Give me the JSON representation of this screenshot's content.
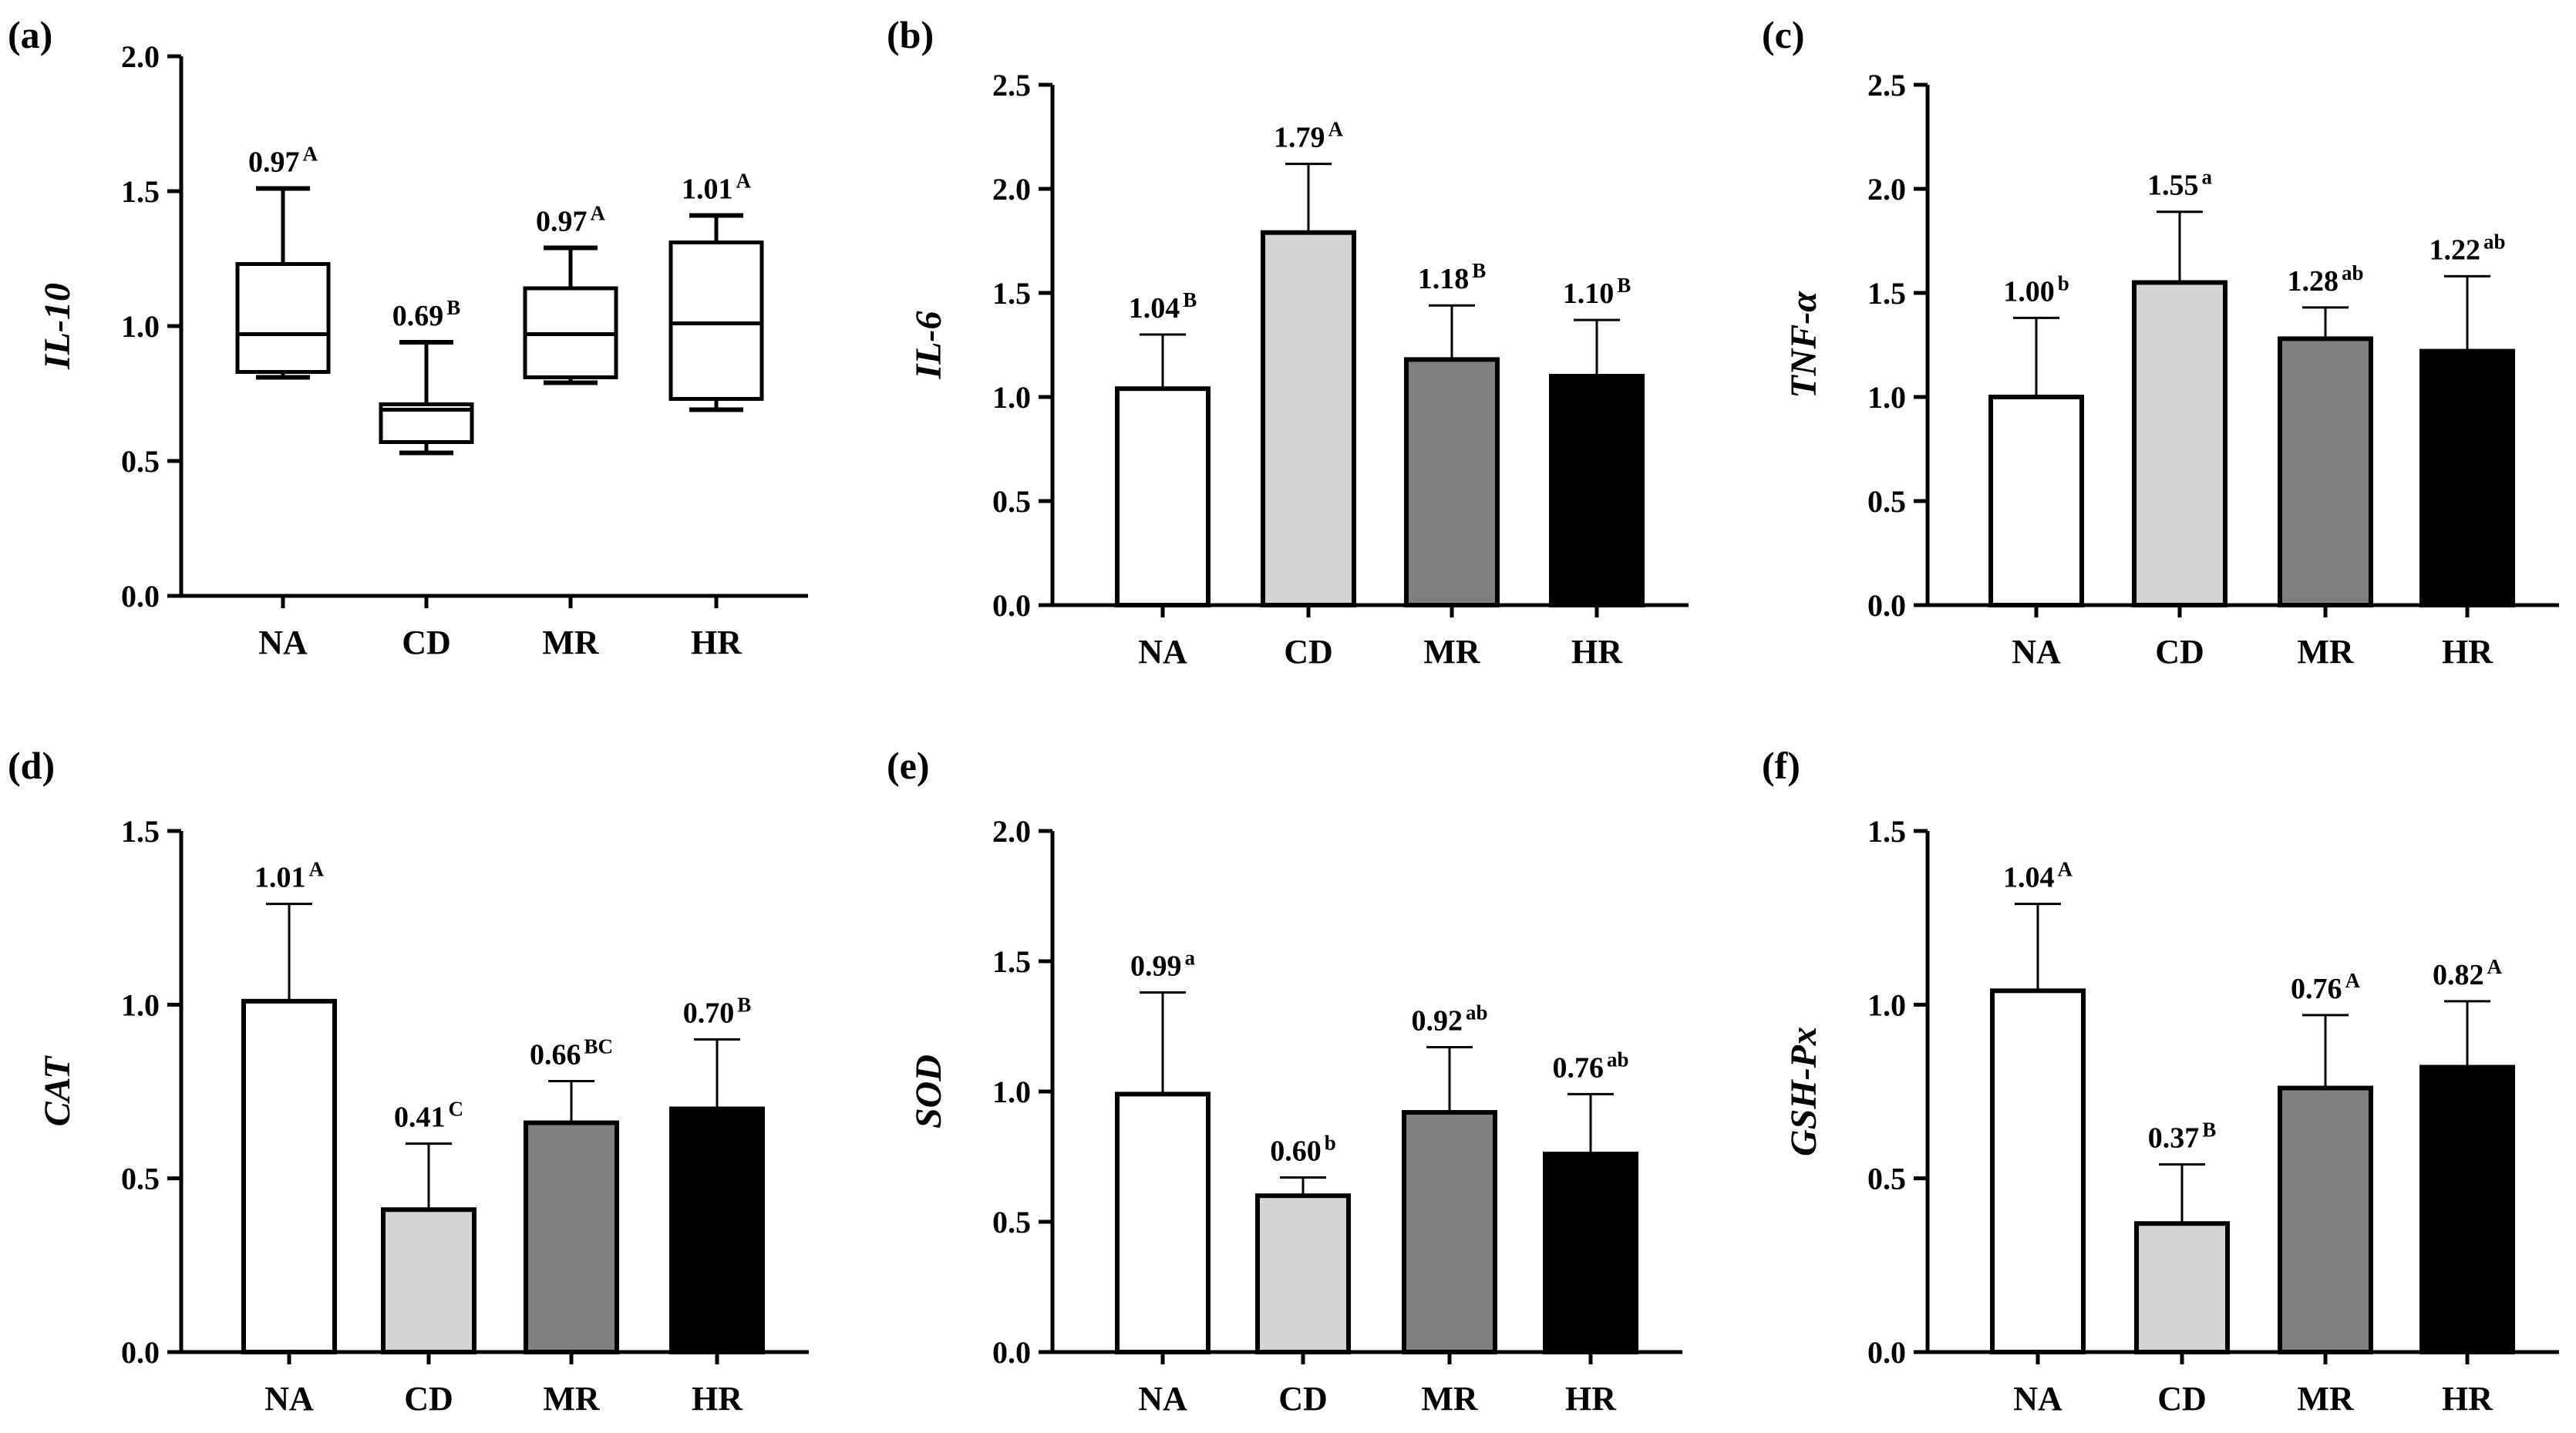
{
  "chart_data": [
    {
      "panel": "(a)",
      "type": "box",
      "ylabel": "IL-10",
      "ylim": [
        0,
        2.0
      ],
      "yticks": [
        "0.0",
        "0.5",
        "1.0",
        "1.5",
        "2.0"
      ],
      "categories": [
        "NA",
        "CD",
        "MR",
        "HR"
      ],
      "boxes": [
        {
          "min": 0.81,
          "q1": 0.83,
          "median": 0.97,
          "q3": 1.23,
          "max": 1.51
        },
        {
          "min": 0.53,
          "q1": 0.57,
          "median": 0.69,
          "q3": 0.71,
          "max": 0.94
        },
        {
          "min": 0.79,
          "q1": 0.81,
          "median": 0.97,
          "q3": 1.14,
          "max": 1.29
        },
        {
          "min": 0.69,
          "q1": 0.73,
          "median": 1.01,
          "q3": 1.31,
          "max": 1.41
        }
      ],
      "value_labels": [
        "0.97",
        "0.69",
        "0.97",
        "1.01"
      ],
      "letters": [
        "A",
        "B",
        "A",
        "A"
      ]
    },
    {
      "panel": "(b)",
      "type": "bar",
      "ylabel": "IL-6",
      "ylim": [
        0,
        2.5
      ],
      "yticks": [
        "0.0",
        "0.5",
        "1.0",
        "1.5",
        "2.0",
        "2.5"
      ],
      "categories": [
        "NA",
        "CD",
        "MR",
        "HR"
      ],
      "values": [
        1.04,
        1.79,
        1.18,
        1.1
      ],
      "errors": [
        0.26,
        0.33,
        0.26,
        0.27
      ],
      "value_labels": [
        "1.04",
        "1.79",
        "1.18",
        "1.10"
      ],
      "letters": [
        "B",
        "A",
        "B",
        "B"
      ]
    },
    {
      "panel": "(c)",
      "type": "bar",
      "ylabel": "TNF-α",
      "ylim": [
        0,
        2.5
      ],
      "yticks": [
        "0.0",
        "0.5",
        "1.0",
        "1.5",
        "2.0",
        "2.5"
      ],
      "categories": [
        "NA",
        "CD",
        "MR",
        "HR"
      ],
      "values": [
        1.0,
        1.55,
        1.28,
        1.22
      ],
      "errors": [
        0.38,
        0.34,
        0.15,
        0.36
      ],
      "value_labels": [
        "1.00",
        "1.55",
        "1.28",
        "1.22"
      ],
      "letters": [
        "b",
        "a",
        "ab",
        "ab"
      ]
    },
    {
      "panel": "(d)",
      "type": "bar",
      "ylabel": "CAT",
      "ylim": [
        0,
        1.5
      ],
      "yticks": [
        "0.0",
        "0.5",
        "1.0",
        "1.5"
      ],
      "categories": [
        "NA",
        "CD",
        "MR",
        "HR"
      ],
      "values": [
        1.01,
        0.41,
        0.66,
        0.7
      ],
      "errors": [
        0.28,
        0.19,
        0.12,
        0.2
      ],
      "value_labels": [
        "1.01",
        "0.41",
        "0.66",
        "0.70"
      ],
      "letters": [
        "A",
        "C",
        "BC",
        "B"
      ]
    },
    {
      "panel": "(e)",
      "type": "bar",
      "ylabel": "SOD",
      "ylim": [
        0,
        2.0
      ],
      "yticks": [
        "0.0",
        "0.5",
        "1.0",
        "1.5",
        "2.0"
      ],
      "categories": [
        "NA",
        "CD",
        "MR",
        "HR"
      ],
      "values": [
        0.99,
        0.6,
        0.92,
        0.76
      ],
      "errors": [
        0.39,
        0.07,
        0.25,
        0.23
      ],
      "value_labels": [
        "0.99",
        "0.60",
        "0.92",
        "0.76"
      ],
      "letters": [
        "a",
        "b",
        "ab",
        "ab"
      ]
    },
    {
      "panel": "(f)",
      "type": "bar",
      "ylabel": "GSH-Px",
      "ylim": [
        0,
        1.5
      ],
      "yticks": [
        "0.0",
        "0.5",
        "1.0",
        "1.5"
      ],
      "categories": [
        "NA",
        "CD",
        "MR",
        "HR"
      ],
      "values": [
        1.04,
        0.37,
        0.76,
        0.82
      ],
      "errors": [
        0.25,
        0.17,
        0.21,
        0.19
      ],
      "value_labels": [
        "1.04",
        "0.37",
        "0.76",
        "0.82"
      ],
      "letters": [
        "A",
        "B",
        "A",
        "A"
      ]
    }
  ],
  "colors": {
    "NA": "#ffffff",
    "CD": "#d4d4d4",
    "MR": "#808080",
    "HR": "#000000",
    "stroke": "#000000"
  }
}
